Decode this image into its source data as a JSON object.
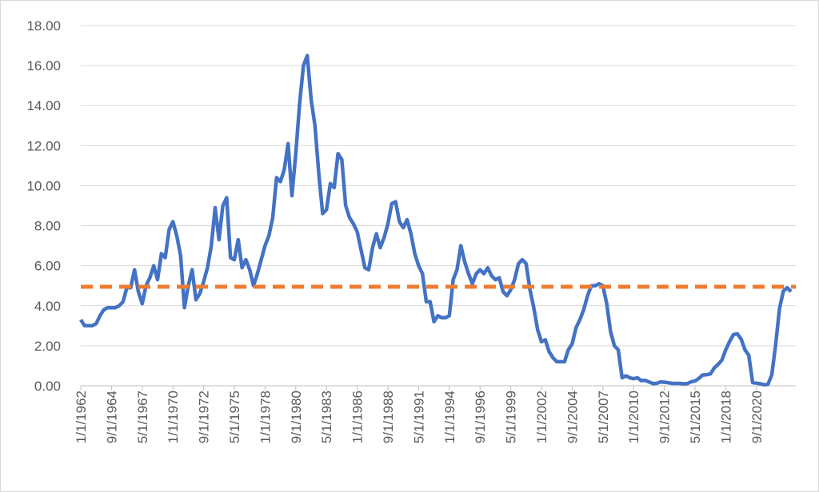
{
  "chart_data": {
    "type": "line",
    "categories": [
      "1/1/1962",
      null,
      null,
      null,
      null,
      null,
      null,
      null,
      "9/1/1964",
      null,
      null,
      null,
      null,
      null,
      null,
      null,
      "5/1/1967",
      null,
      null,
      null,
      null,
      null,
      null,
      null,
      "1/1/1970",
      null,
      null,
      null,
      null,
      null,
      null,
      null,
      "9/1/1972",
      null,
      null,
      null,
      null,
      null,
      null,
      null,
      "5/1/1975",
      null,
      null,
      null,
      null,
      null,
      null,
      null,
      "1/1/1978",
      null,
      null,
      null,
      null,
      null,
      null,
      null,
      "9/1/1980",
      null,
      null,
      null,
      null,
      null,
      null,
      null,
      "5/1/1983",
      null,
      null,
      null,
      null,
      null,
      null,
      null,
      "1/1/1986",
      null,
      null,
      null,
      null,
      null,
      null,
      null,
      "9/1/1988",
      null,
      null,
      null,
      null,
      null,
      null,
      null,
      "5/1/1991",
      null,
      null,
      null,
      null,
      null,
      null,
      null,
      "1/1/1994",
      null,
      null,
      null,
      null,
      null,
      null,
      null,
      "9/1/1996",
      null,
      null,
      null,
      null,
      null,
      null,
      null,
      "5/1/1999",
      null,
      null,
      null,
      null,
      null,
      null,
      null,
      "1/1/2002",
      null,
      null,
      null,
      null,
      null,
      null,
      null,
      "9/1/2004",
      null,
      null,
      null,
      null,
      null,
      null,
      null,
      "5/1/2007",
      null,
      null,
      null,
      null,
      null,
      null,
      null,
      "1/1/2010",
      null,
      null,
      null,
      null,
      null,
      null,
      null,
      "9/1/2012",
      null,
      null,
      null,
      null,
      null,
      null,
      null,
      "5/1/2015",
      null,
      null,
      null,
      null,
      null,
      null,
      null,
      "1/1/2018",
      null,
      null,
      null,
      null,
      null,
      null,
      null,
      "9/1/2020",
      null,
      null,
      null,
      null,
      null,
      null,
      null,
      null,
      null
    ],
    "series": [
      {
        "color": "#4472c4",
        "values": [
          3.3,
          3.0,
          3.0,
          3.0,
          3.1,
          3.5,
          3.8,
          3.9,
          3.9,
          3.9,
          4.0,
          4.2,
          4.9,
          4.9,
          5.8,
          4.7,
          4.1,
          5.0,
          5.4,
          6.0,
          5.3,
          6.6,
          6.4,
          7.8,
          8.2,
          7.5,
          6.5,
          3.9,
          5.0,
          5.8,
          4.3,
          4.6,
          5.2,
          5.9,
          7.0,
          8.9,
          7.3,
          9.0,
          9.4,
          6.4,
          6.3,
          7.3,
          5.9,
          6.3,
          5.8,
          5.0,
          5.6,
          6.3,
          7.0,
          7.5,
          8.4,
          10.4,
          10.2,
          10.8,
          12.1,
          9.5,
          11.6,
          14.1,
          16.0,
          16.5,
          14.3,
          13.0,
          10.6,
          8.6,
          8.8,
          10.1,
          9.9,
          11.6,
          11.3,
          9.0,
          8.4,
          8.1,
          7.7,
          6.8,
          5.9,
          5.8,
          6.9,
          7.6,
          6.9,
          7.4,
          8.1,
          9.1,
          9.2,
          8.2,
          7.9,
          8.3,
          7.6,
          6.6,
          6.0,
          5.6,
          4.2,
          4.2,
          3.2,
          3.5,
          3.4,
          3.4,
          3.5,
          5.3,
          5.8,
          7.0,
          6.2,
          5.6,
          5.1,
          5.6,
          5.8,
          5.6,
          5.9,
          5.5,
          5.3,
          5.4,
          4.7,
          4.5,
          4.8,
          5.3,
          6.1,
          6.3,
          6.1,
          4.8,
          3.9,
          2.8,
          2.2,
          2.3,
          1.7,
          1.4,
          1.2,
          1.2,
          1.2,
          1.8,
          2.1,
          2.9,
          3.3,
          3.8,
          4.5,
          5.0,
          5.0,
          5.1,
          5.0,
          4.1,
          2.7,
          2.0,
          1.8,
          0.4,
          0.5,
          0.4,
          0.35,
          0.4,
          0.26,
          0.27,
          0.19,
          0.11,
          0.12,
          0.19,
          0.18,
          0.15,
          0.12,
          0.12,
          0.12,
          0.1,
          0.11,
          0.2,
          0.24,
          0.37,
          0.54,
          0.55,
          0.59,
          0.89,
          1.07,
          1.28,
          1.8,
          2.21,
          2.56,
          2.6,
          2.34,
          1.8,
          1.53,
          0.16,
          0.13,
          0.1,
          0.05,
          0.07,
          0.55,
          2.05,
          3.86,
          4.73,
          4.9,
          4.7
        ]
      }
    ],
    "reference_line": {
      "value": 4.95,
      "color": "#ed7d31"
    },
    "ylim": [
      0,
      18
    ],
    "yticks": [
      {
        "value": 0,
        "label": "0.00"
      },
      {
        "value": 2,
        "label": "2.00"
      },
      {
        "value": 4,
        "label": "4.00"
      },
      {
        "value": 6,
        "label": "6.00"
      },
      {
        "value": 8,
        "label": "8.00"
      },
      {
        "value": 10,
        "label": "10.00"
      },
      {
        "value": 12,
        "label": "12.00"
      },
      {
        "value": 14,
        "label": "14.00"
      },
      {
        "value": 16,
        "label": "16.00"
      },
      {
        "value": 18,
        "label": "18.00"
      }
    ],
    "grid": true
  }
}
